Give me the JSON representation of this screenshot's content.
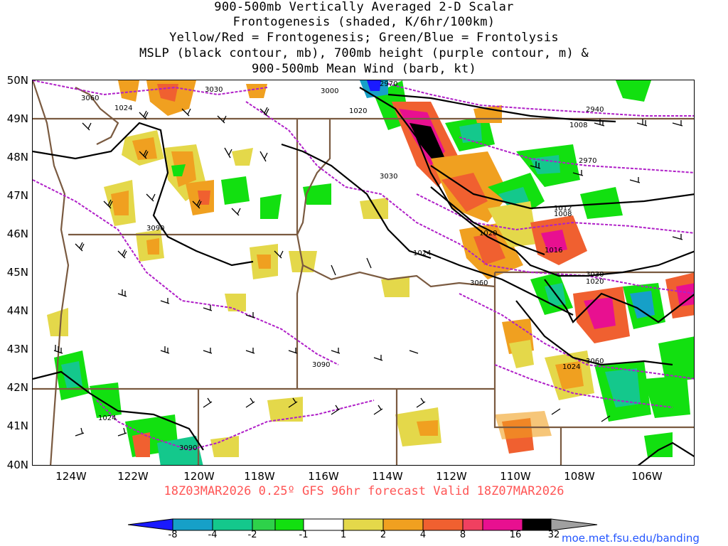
{
  "title": {
    "line1": "900-500mb Vertically Averaged 2-D Scalar",
    "line2": "Frontogenesis (shaded, K/6hr/100km)",
    "line3": "Yellow/Red = Frontogenesis;  Green/Blue = Frontolysis",
    "line4": "MSLP (black contour, mb), 700mb height (purple contour, m) &",
    "line5": "900-500mb Mean Wind (barb, kt)"
  },
  "footer": "18Z03MAR2026 0.25º GFS 96hr forecast Valid 18Z07MAR2026",
  "credit": "moe.met.fsu.edu/banding",
  "lat_labels": [
    "50N",
    "49N",
    "48N",
    "47N",
    "46N",
    "45N",
    "44N",
    "43N",
    "42N",
    "41N",
    "40N"
  ],
  "lon_labels": [
    "124W",
    "122W",
    "120W",
    "118W",
    "116W",
    "114W",
    "112W",
    "110W",
    "108W",
    "106W"
  ],
  "colorbar": {
    "labels": [
      "-8",
      "-4",
      "-2",
      "-1",
      "1",
      "2",
      "4",
      "8",
      "16",
      "32"
    ],
    "colors": [
      "#1a1aff",
      "#16a0c8",
      "#14c88c",
      "#2ed24a",
      "#12e010",
      "#ffffff",
      "#e4d84a",
      "#f0a020",
      "#f06030",
      "#f04060",
      "#e81090",
      "#000000",
      "#a0a0a0"
    ]
  },
  "mslp_labels": [
    "1024",
    "1020",
    "1008",
    "1012",
    "1008",
    "1020",
    "1016",
    "1024",
    "1020",
    "1024",
    "1024"
  ],
  "height_labels": [
    "3060",
    "3030",
    "3000",
    "2970",
    "2940",
    "2970",
    "3030",
    "3090",
    "3060",
    "3030",
    "3060",
    "3090",
    "3090"
  ],
  "colors": {
    "mslp": "#000000",
    "height": "#b020c8",
    "borders": "#7a5a40",
    "footer": "#ff5555",
    "credit": "#2255ff"
  }
}
